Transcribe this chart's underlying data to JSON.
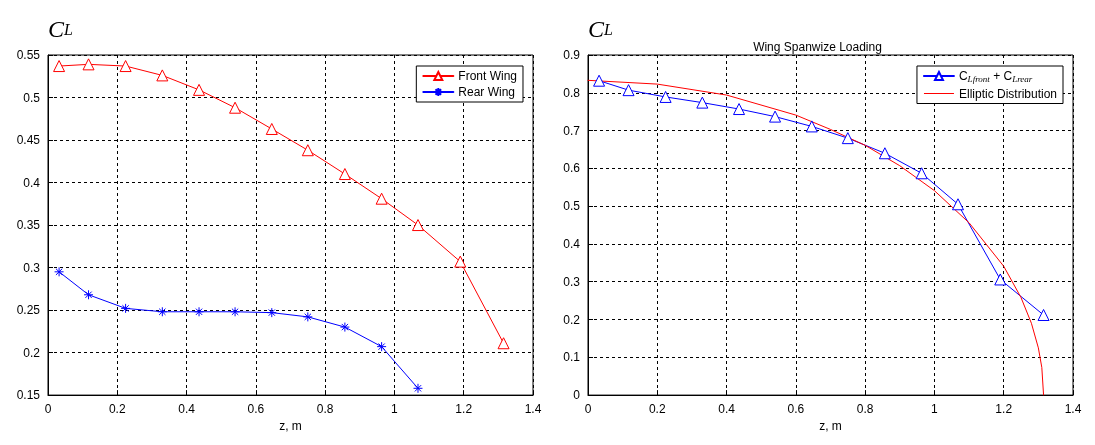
{
  "chart_data": [
    {
      "type": "line",
      "ylabel": "C$_{L}$",
      "xlabel": "z, m",
      "xlim": [
        0,
        1.4
      ],
      "xticks": [
        0,
        0.2,
        0.4,
        0.6,
        0.8,
        1,
        1.2,
        1.4
      ],
      "ylim": [
        0.15,
        0.55
      ],
      "yticks": [
        0.15,
        0.2,
        0.25,
        0.3,
        0.35,
        0.4,
        0.45,
        0.5,
        0.55
      ],
      "grid": true,
      "legend": "top right",
      "line_style": "solid",
      "series": [
        {
          "name": "Front Wing",
          "color": "#ff0000",
          "marker": "triangle",
          "x": [
            0.032,
            0.117,
            0.224,
            0.33,
            0.436,
            0.54,
            0.646,
            0.75,
            0.857,
            0.963,
            1.068,
            1.19,
            1.315
          ],
          "values": [
            0.537,
            0.539,
            0.537,
            0.526,
            0.509,
            0.488,
            0.463,
            0.438,
            0.41,
            0.381,
            0.35,
            0.307,
            0.211
          ]
        },
        {
          "name": "Rear Wing",
          "color": "#0000ff",
          "marker": "cross",
          "x": [
            0.032,
            0.117,
            0.224,
            0.33,
            0.436,
            0.54,
            0.646,
            0.75,
            0.857,
            0.963,
            1.068
          ],
          "values": [
            0.295,
            0.268,
            0.252,
            0.248,
            0.248,
            0.248,
            0.247,
            0.242,
            0.23,
            0.207,
            0.158
          ]
        }
      ]
    },
    {
      "type": "line",
      "title": "Wing Spanwize Loading",
      "ylabel": "C$_{L}$",
      "xlabel": "z, m",
      "xlim": [
        0,
        1.4
      ],
      "xticks": [
        0,
        0.2,
        0.4,
        0.6,
        0.8,
        1,
        1.2,
        1.4
      ],
      "ylim": [
        0,
        0.9
      ],
      "yticks": [
        0,
        0.1,
        0.2,
        0.3,
        0.4,
        0.5,
        0.6,
        0.7,
        0.8,
        0.9
      ],
      "grid": true,
      "legend": "top right",
      "line_style": "solid",
      "series": [
        {
          "name": "C$_{Lfront}$ + C$_{Lrear}$",
          "color": "#0000ff",
          "marker": "triangle",
          "x": [
            0.032,
            0.117,
            0.224,
            0.33,
            0.436,
            0.54,
            0.646,
            0.75,
            0.857,
            0.963,
            1.068,
            1.19,
            1.315
          ],
          "values": [
            0.832,
            0.807,
            0.789,
            0.774,
            0.757,
            0.737,
            0.711,
            0.68,
            0.64,
            0.587,
            0.505,
            0.306,
            0.212
          ]
        },
        {
          "name": "Elliptic Distribution",
          "color": "#ff0000",
          "marker": "none",
          "x": [
            0,
            0.2,
            0.4,
            0.6,
            0.7,
            0.8,
            0.9,
            1.0,
            1.1,
            1.2,
            1.25,
            1.28,
            1.3,
            1.31,
            1.315
          ],
          "values": [
            0.833,
            0.823,
            0.794,
            0.741,
            0.703,
            0.661,
            0.607,
            0.541,
            0.456,
            0.341,
            0.258,
            0.19,
            0.125,
            0.073,
            0
          ]
        }
      ]
    }
  ]
}
